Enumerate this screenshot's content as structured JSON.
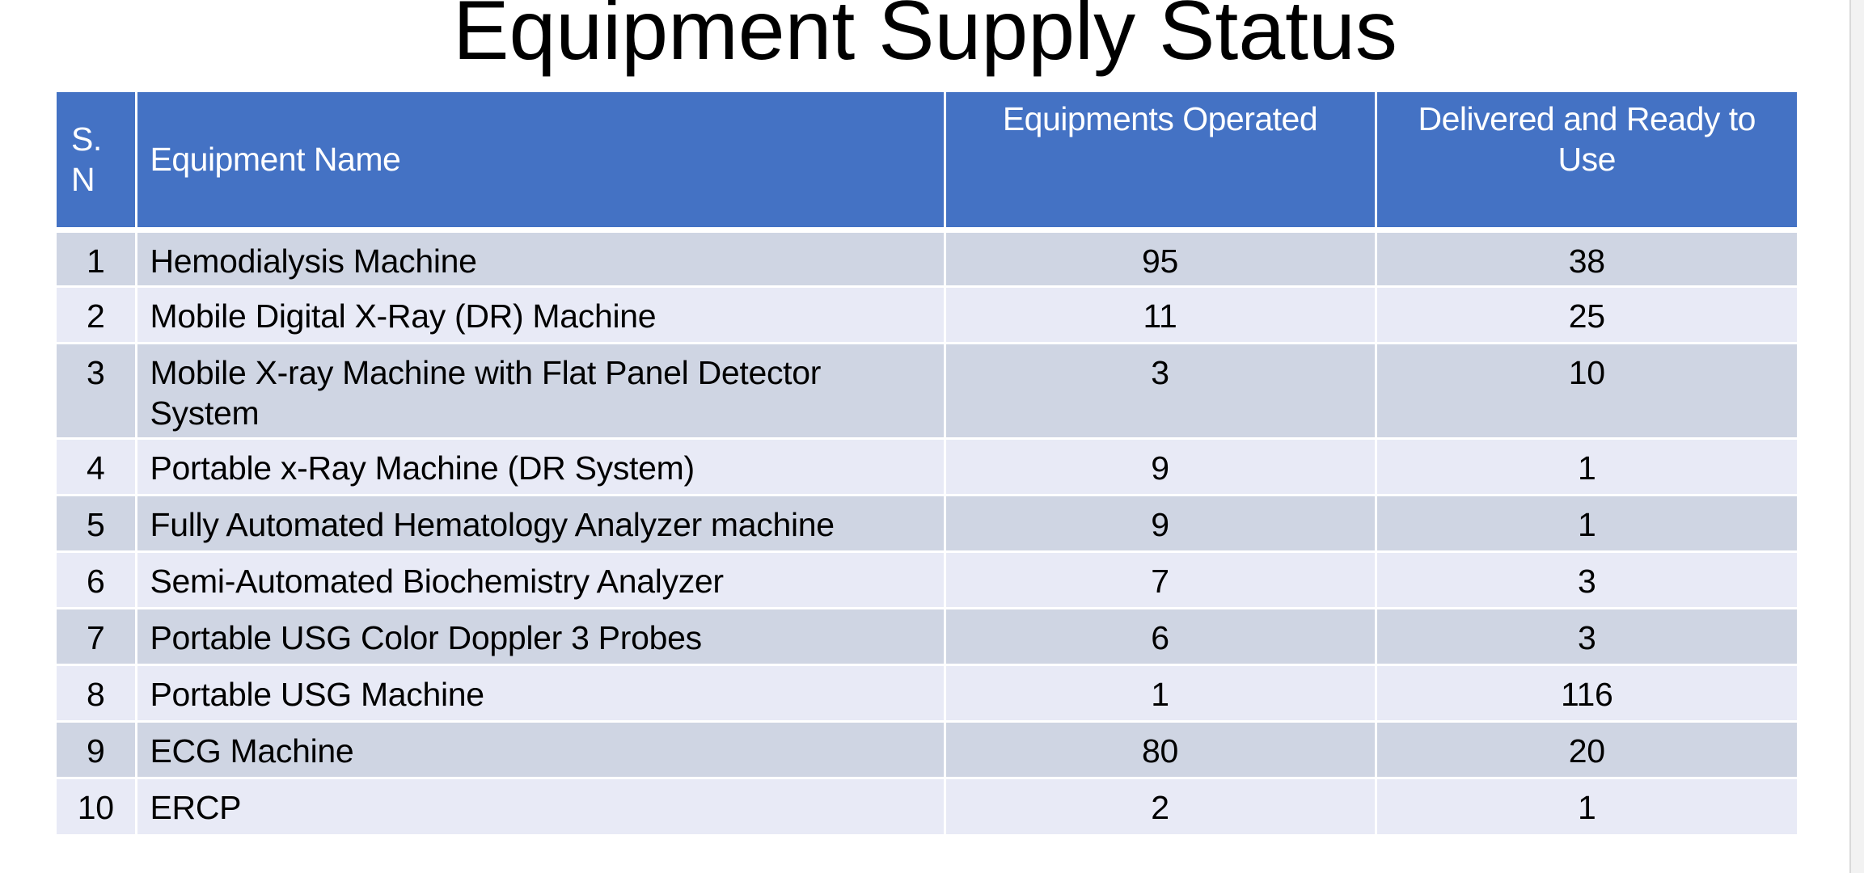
{
  "title": "Equipment Supply Status",
  "table": {
    "headers": {
      "sn_line1": "S.",
      "sn_line2": "N",
      "name": "Equipment Name",
      "operated": "Equipments Operated",
      "delivered_line1": "Delivered and Ready to",
      "delivered_line2": "Use"
    },
    "rows": [
      {
        "sn": "1",
        "name": "Hemodialysis Machine",
        "operated": "95",
        "delivered": "38"
      },
      {
        "sn": "2",
        "name": "Mobile Digital X-Ray (DR) Machine",
        "operated": "11",
        "delivered": "25"
      },
      {
        "sn": "3",
        "name": "Mobile X-ray Machine with Flat Panel Detector System",
        "operated": "3",
        "delivered": "10"
      },
      {
        "sn": "4",
        "name": "Portable x-Ray Machine (DR System)",
        "operated": "9",
        "delivered": "1"
      },
      {
        "sn": "5",
        "name": "Fully Automated Hematology Analyzer machine",
        "operated": "9",
        "delivered": "1"
      },
      {
        "sn": "6",
        "name": "Semi-Automated Biochemistry Analyzer",
        "operated": "7",
        "delivered": "3"
      },
      {
        "sn": "7",
        "name": "Portable USG Color Doppler 3 Probes",
        "operated": "6",
        "delivered": "3"
      },
      {
        "sn": "8",
        "name": "Portable USG Machine",
        "operated": "1",
        "delivered": "116"
      },
      {
        "sn": "9",
        "name": "ECG Machine",
        "operated": "80",
        "delivered": "20"
      },
      {
        "sn": "10",
        "name": "ERCP",
        "operated": "2",
        "delivered": "1"
      }
    ]
  },
  "colors": {
    "header_bg": "#4472c4",
    "row_odd_bg": "#cfd5e3",
    "row_even_bg": "#e8eaf6"
  }
}
